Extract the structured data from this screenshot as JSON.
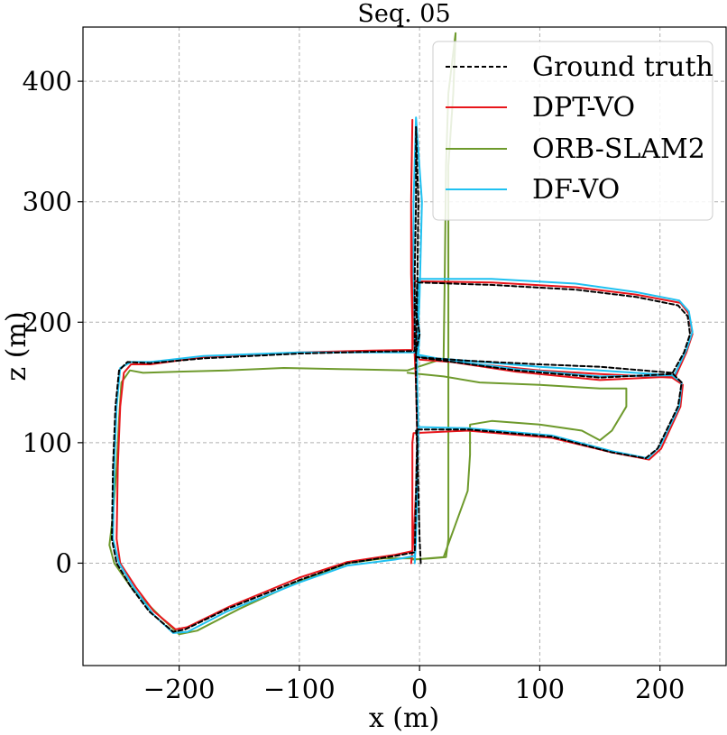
{
  "chart_data": {
    "type": "line",
    "title": "Seq. 05",
    "xlabel": "x (m)",
    "ylabel": "z (m)",
    "xlim": [
      -280,
      255
    ],
    "ylim": [
      -85,
      445
    ],
    "xticks": [
      -200,
      -100,
      0,
      100,
      200
    ],
    "yticks": [
      0,
      100,
      200,
      300,
      400
    ],
    "xtick_labels": [
      "−200",
      "−100",
      "0",
      "100",
      "200"
    ],
    "ytick_labels": [
      "0",
      "100",
      "200",
      "300",
      "400"
    ],
    "grid": true,
    "legend_position": "top-right",
    "series": [
      {
        "name": "Ground truth",
        "color": "#000000",
        "dashed": true,
        "points": [
          [
            1,
            0
          ],
          [
            0,
            20
          ],
          [
            -1,
            60
          ],
          [
            -2,
            110
          ],
          [
            -3,
            150
          ],
          [
            -3,
            172
          ],
          [
            -2,
            222
          ],
          [
            -1,
            300
          ],
          [
            -3,
            362
          ],
          [
            -3,
            300
          ],
          [
            -4,
            240
          ],
          [
            -4,
            200
          ],
          [
            -4,
            176
          ],
          [
            -40,
            175.5
          ],
          [
            -100,
            174
          ],
          [
            -180,
            170
          ],
          [
            -224,
            166
          ],
          [
            -243,
            167
          ],
          [
            -250,
            160
          ],
          [
            -253,
            130
          ],
          [
            -255,
            80
          ],
          [
            -256,
            20
          ],
          [
            -252,
            0
          ],
          [
            -240,
            -20
          ],
          [
            -225,
            -40
          ],
          [
            -205,
            -57
          ],
          [
            -195,
            -55
          ],
          [
            -160,
            -38
          ],
          [
            -100,
            -14
          ],
          [
            -60,
            0
          ],
          [
            -20,
            6
          ],
          [
            -4,
            9
          ],
          [
            -2,
            100
          ],
          [
            -3,
            111
          ],
          [
            40,
            111
          ],
          [
            110,
            105
          ],
          [
            160,
            92
          ],
          [
            188,
            87
          ],
          [
            198,
            95
          ],
          [
            215,
            130
          ],
          [
            218,
            150
          ],
          [
            210,
            158
          ],
          [
            150,
            163
          ],
          [
            100,
            165
          ],
          [
            40,
            168
          ],
          [
            -3,
            171
          ],
          [
            -3,
            175
          ],
          [
            0,
            190
          ],
          [
            -3,
            210
          ],
          [
            -2,
            233
          ],
          [
            60,
            231
          ],
          [
            130,
            227
          ],
          [
            180,
            221
          ],
          [
            215,
            214
          ],
          [
            223,
            205
          ],
          [
            225,
            190
          ],
          [
            220,
            175
          ],
          [
            210,
            157
          ],
          [
            150,
            154
          ],
          [
            80,
            160
          ],
          [
            20,
            168
          ],
          [
            -2,
            171
          ]
        ]
      },
      {
        "name": "DPT-VO",
        "color": "#e8161b",
        "dashed": false,
        "points": [
          [
            -7,
            0
          ],
          [
            -5,
            20
          ],
          [
            -3,
            60
          ],
          [
            -2,
            110
          ],
          [
            -3,
            150
          ],
          [
            -4,
            172
          ],
          [
            -6,
            222
          ],
          [
            -7,
            300
          ],
          [
            -6,
            368
          ],
          [
            -7,
            300
          ],
          [
            -7,
            240
          ],
          [
            -6,
            200
          ],
          [
            -6,
            177
          ],
          [
            -40,
            176.5
          ],
          [
            -100,
            175
          ],
          [
            -180,
            171
          ],
          [
            -224,
            165
          ],
          [
            -240,
            165
          ],
          [
            -246,
            158
          ],
          [
            -249,
            130
          ],
          [
            -251,
            80
          ],
          [
            -252,
            20
          ],
          [
            -249,
            0
          ],
          [
            -236,
            -20
          ],
          [
            -221,
            -40
          ],
          [
            -203,
            -55
          ],
          [
            -193,
            -53
          ],
          [
            -158,
            -36
          ],
          [
            -100,
            -12
          ],
          [
            -60,
            1
          ],
          [
            -20,
            7
          ],
          [
            -6,
            10
          ],
          [
            -6,
            100
          ],
          [
            -5,
            108
          ],
          [
            40,
            110
          ],
          [
            110,
            104
          ],
          [
            160,
            92
          ],
          [
            191,
            86
          ],
          [
            201,
            95
          ],
          [
            217,
            130
          ],
          [
            219,
            148
          ],
          [
            210,
            154
          ],
          [
            150,
            157
          ],
          [
            100,
            160
          ],
          [
            40,
            166
          ],
          [
            0,
            169
          ],
          [
            -2,
            174
          ],
          [
            -3,
            190
          ],
          [
            -5,
            210
          ],
          [
            -4,
            234
          ],
          [
            60,
            233
          ],
          [
            130,
            229
          ],
          [
            180,
            223
          ],
          [
            217,
            216
          ],
          [
            224,
            207
          ],
          [
            227,
            190
          ],
          [
            222,
            175
          ],
          [
            213,
            155
          ],
          [
            150,
            152
          ],
          [
            80,
            159
          ],
          [
            20,
            168
          ],
          [
            -3,
            172
          ]
        ]
      },
      {
        "name": "ORB-SLAM2",
        "color": "#6e9a2c",
        "dashed": false,
        "points": [
          [
            -6,
            3
          ],
          [
            10,
            4
          ],
          [
            22,
            5
          ],
          [
            24,
            20
          ],
          [
            24,
            60
          ],
          [
            24,
            120
          ],
          [
            24,
            250
          ],
          [
            24,
            330
          ],
          [
            28,
            390
          ],
          [
            30,
            440
          ],
          [
            24,
            390
          ],
          [
            22,
            330
          ],
          [
            21,
            240
          ],
          [
            20,
            170
          ],
          [
            -10,
            160
          ],
          [
            -60,
            161
          ],
          [
            -113,
            162
          ],
          [
            -160,
            160
          ],
          [
            -200,
            159
          ],
          [
            -230,
            158
          ],
          [
            -241,
            160
          ],
          [
            -248,
            150
          ],
          [
            -250,
            120
          ],
          [
            -252,
            80
          ],
          [
            -255,
            40
          ],
          [
            -258,
            15
          ],
          [
            -254,
            0
          ],
          [
            -240,
            -20
          ],
          [
            -215,
            -45
          ],
          [
            -200,
            -59
          ],
          [
            -185,
            -56
          ],
          [
            -150,
            -38
          ],
          [
            -100,
            -15
          ],
          [
            -60,
            0
          ],
          [
            -30,
            4
          ],
          [
            -6,
            4
          ],
          [
            -4,
            3
          ],
          [
            20,
            5
          ],
          [
            40,
            60
          ],
          [
            42,
            90
          ],
          [
            42,
            115
          ],
          [
            60,
            118
          ],
          [
            100,
            115
          ],
          [
            135,
            110
          ],
          [
            150,
            102
          ],
          [
            160,
            110
          ],
          [
            172,
            130
          ],
          [
            172,
            145
          ],
          [
            150,
            145
          ],
          [
            100,
            148
          ],
          [
            50,
            150
          ],
          [
            20,
            155
          ],
          [
            -10,
            158
          ]
        ]
      },
      {
        "name": "DF-VO",
        "color": "#1fc1f1",
        "dashed": false,
        "points": [
          [
            -4,
            0
          ],
          [
            -3,
            20
          ],
          [
            -2,
            60
          ],
          [
            -1,
            110
          ],
          [
            -2,
            150
          ],
          [
            -2,
            172
          ],
          [
            0,
            222
          ],
          [
            2,
            300
          ],
          [
            -3,
            370
          ],
          [
            -5,
            300
          ],
          [
            -5,
            240
          ],
          [
            -4,
            200
          ],
          [
            -4,
            175
          ],
          [
            -40,
            175
          ],
          [
            -100,
            175
          ],
          [
            -180,
            172
          ],
          [
            -224,
            167
          ],
          [
            -240,
            167
          ],
          [
            -249,
            162
          ],
          [
            -252,
            130
          ],
          [
            -254,
            80
          ],
          [
            -255,
            20
          ],
          [
            -250,
            0
          ],
          [
            -238,
            -20
          ],
          [
            -222,
            -42
          ],
          [
            -205,
            -58
          ],
          [
            -193,
            -57
          ],
          [
            -160,
            -40
          ],
          [
            -100,
            -16
          ],
          [
            -60,
            -2
          ],
          [
            -20,
            3
          ],
          [
            -4,
            6
          ],
          [
            -2,
            100
          ],
          [
            -1,
            113
          ],
          [
            40,
            112
          ],
          [
            110,
            106
          ],
          [
            160,
            93
          ],
          [
            190,
            87
          ],
          [
            200,
            97
          ],
          [
            216,
            130
          ],
          [
            218,
            150
          ],
          [
            210,
            156
          ],
          [
            150,
            160
          ],
          [
            100,
            163
          ],
          [
            40,
            168
          ],
          [
            0,
            171
          ],
          [
            -1,
            175
          ],
          [
            0,
            190
          ],
          [
            -2,
            210
          ],
          [
            -1,
            236
          ],
          [
            60,
            236
          ],
          [
            130,
            232
          ],
          [
            180,
            225
          ],
          [
            216,
            218
          ],
          [
            224,
            209
          ],
          [
            227,
            192
          ],
          [
            222,
            177
          ],
          [
            212,
            156
          ],
          [
            150,
            155
          ],
          [
            80,
            161
          ],
          [
            20,
            169
          ],
          [
            -1,
            173
          ]
        ]
      }
    ]
  }
}
